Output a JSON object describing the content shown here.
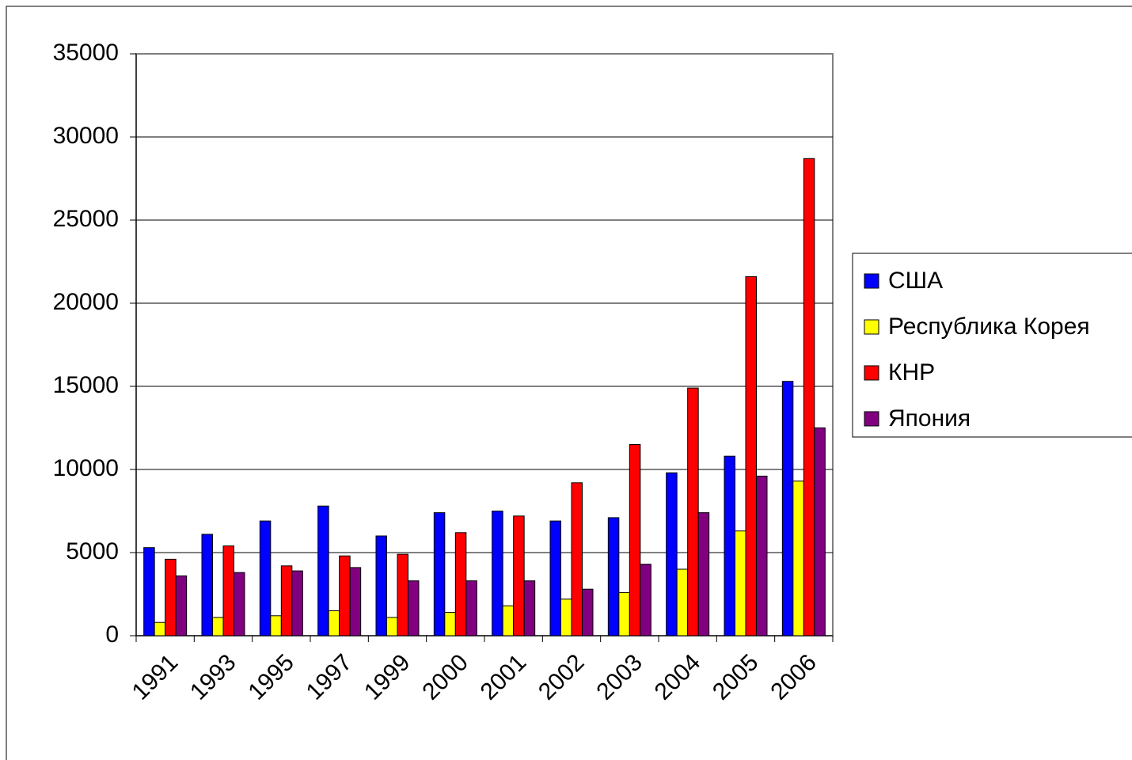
{
  "chart_data": {
    "type": "bar",
    "categories": [
      "1991",
      "1993",
      "1995",
      "1997",
      "1999",
      "2000",
      "2001",
      "2002",
      "2003",
      "2004",
      "2005",
      "2006"
    ],
    "series": [
      {
        "name": "США",
        "color": "#0000ff",
        "values": [
          5300,
          6100,
          6900,
          7800,
          6000,
          7400,
          7500,
          6900,
          7100,
          9800,
          10800,
          15300
        ]
      },
      {
        "name": "Республика Корея",
        "color": "#ffff00",
        "values": [
          800,
          1100,
          1200,
          1500,
          1100,
          1400,
          1800,
          2200,
          2600,
          4000,
          6300,
          9300
        ]
      },
      {
        "name": "КНР",
        "color": "#ff0000",
        "values": [
          4600,
          5400,
          4200,
          4800,
          4900,
          6200,
          7200,
          9200,
          11500,
          14900,
          21600,
          28700
        ]
      },
      {
        "name": "Япония",
        "color": "#800080",
        "values": [
          3600,
          3800,
          3900,
          4100,
          3300,
          3300,
          3300,
          2800,
          4300,
          7400,
          9600,
          12500
        ]
      }
    ],
    "ylim": [
      0,
      35000
    ],
    "yticks": [
      0,
      5000,
      10000,
      15000,
      20000,
      25000,
      30000,
      35000
    ],
    "grid": true,
    "legend": "right"
  }
}
